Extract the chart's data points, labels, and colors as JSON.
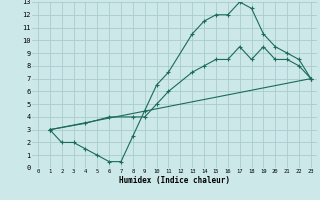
{
  "xlabel": "Humidex (Indice chaleur)",
  "bg_color": "#cce8e8",
  "grid_color": "#aacccc",
  "line_color": "#1a6b5a",
  "xlim": [
    -0.5,
    23.5
  ],
  "ylim": [
    0,
    13
  ],
  "xticks": [
    0,
    1,
    2,
    3,
    4,
    5,
    6,
    7,
    8,
    9,
    10,
    11,
    12,
    13,
    14,
    15,
    16,
    17,
    18,
    19,
    20,
    21,
    22,
    23
  ],
  "yticks": [
    0,
    1,
    2,
    3,
    4,
    5,
    6,
    7,
    8,
    9,
    10,
    11,
    12,
    13
  ],
  "line1_x": [
    1,
    2,
    3,
    4,
    5,
    6,
    7,
    8,
    9,
    10,
    11,
    13,
    14,
    15,
    16,
    17,
    18,
    19,
    20,
    21,
    22,
    23
  ],
  "line1_y": [
    3,
    2,
    2,
    1.5,
    1,
    0.5,
    0.5,
    2.5,
    4.5,
    6.5,
    7.5,
    10.5,
    11.5,
    12,
    12,
    13,
    12.5,
    10.5,
    9.5,
    9,
    8.5,
    7
  ],
  "line2_x": [
    1,
    23
  ],
  "line2_y": [
    3,
    7
  ],
  "line3_x": [
    1,
    4,
    6,
    8,
    9,
    10,
    11,
    13,
    14,
    15,
    16,
    17,
    18,
    19,
    20,
    21,
    22,
    23
  ],
  "line3_y": [
    3,
    3.5,
    4,
    4,
    4,
    5,
    6,
    7.5,
    8,
    8.5,
    8.5,
    9.5,
    8.5,
    9.5,
    8.5,
    8.5,
    8,
    7
  ]
}
